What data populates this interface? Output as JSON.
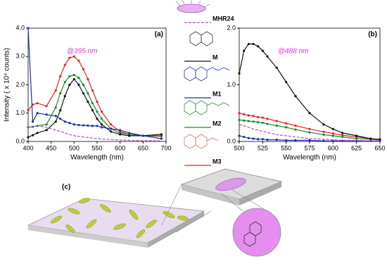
{
  "chart_data": [
    {
      "type": "line",
      "label": "(a)",
      "annotation": "@395 nm",
      "xlabel": "Wavelength (nm)",
      "ylabel": "Intensity ( x 10⁴ counts)",
      "x": [
        400,
        410,
        420,
        440,
        460,
        470,
        480,
        490,
        500,
        510,
        520,
        530,
        540,
        550,
        560,
        580,
        600,
        620,
        650,
        690
      ],
      "xlim": [
        400,
        700
      ],
      "xticks": [
        400,
        450,
        500,
        550,
        600,
        650,
        700
      ],
      "ylim": [
        0,
        4
      ],
      "yticks": [
        {
          "value": 0,
          "label": "0.0"
        },
        {
          "value": 1,
          "label": "1.0"
        },
        {
          "value": 2,
          "label": "2.0"
        },
        {
          "value": 3,
          "label": "3.0"
        },
        {
          "value": 4,
          "label": "4.0"
        }
      ],
      "series": [
        {
          "name": "M3",
          "color": "#e8221e",
          "values": [
            1.1,
            1.3,
            1.35,
            1.25,
            1.8,
            2.3,
            2.7,
            2.95,
            3.0,
            2.85,
            2.55,
            2.2,
            1.8,
            1.4,
            1.05,
            0.6,
            0.35,
            0.25,
            0.2,
            0.18
          ]
        },
        {
          "name": "M2",
          "color": "#1a8a2a",
          "values": [
            0.5,
            0.52,
            0.55,
            0.6,
            1.2,
            1.7,
            2.1,
            2.3,
            2.35,
            2.25,
            2.0,
            1.7,
            1.35,
            1.05,
            0.8,
            0.45,
            0.3,
            0.25,
            0.2,
            0.2
          ]
        },
        {
          "name": "M",
          "color": "#111111",
          "values": [
            0.15,
            0.22,
            0.3,
            0.4,
            0.7,
            1.1,
            1.6,
            2.0,
            2.2,
            2.0,
            1.7,
            1.4,
            1.1,
            0.8,
            0.6,
            0.35,
            0.25,
            0.2,
            0.2,
            0.25
          ]
        },
        {
          "name": "M1",
          "color": "#1f2fa8",
          "values": [
            4.0,
            0.7,
            1.0,
            0.95,
            0.9,
            0.8,
            0.7,
            0.65,
            0.6,
            0.58,
            0.57,
            0.56,
            0.55,
            0.55,
            0.5,
            0.45,
            0.4,
            0.3,
            0.2,
            0.1
          ]
        },
        {
          "name": "MHR24",
          "color": "#b04cc8",
          "dash": true,
          "values": [
            0.5,
            0.52,
            0.55,
            0.5,
            0.4,
            0.35,
            0.3,
            0.25,
            0.2,
            0.18,
            0.16,
            0.14,
            0.12,
            0.1,
            0.09,
            0.07,
            0.05,
            0.04,
            0.03,
            0.02
          ]
        }
      ]
    },
    {
      "type": "line",
      "label": "(b)",
      "annotation": "@488 nm",
      "xlabel": "Wavelength (nm)",
      "x": [
        500,
        505,
        510,
        515,
        520,
        525,
        530,
        540,
        550,
        560,
        575,
        590,
        600,
        610,
        625,
        640,
        650
      ],
      "xlim": [
        500,
        650
      ],
      "xticks": [
        500,
        525,
        550,
        575,
        600,
        625,
        650
      ],
      "ylim": [
        0,
        2
      ],
      "yticks": [
        {
          "value": 0,
          "label": "0.0"
        },
        {
          "value": 1,
          "label": "1.0"
        },
        {
          "value": 2,
          "label": "2.0"
        }
      ],
      "series": [
        {
          "name": "M3",
          "color": "#e8221e",
          "values": [
            0.5,
            0.48,
            0.46,
            0.45,
            0.43,
            0.42,
            0.4,
            0.36,
            0.32,
            0.28,
            0.22,
            0.17,
            0.14,
            0.11,
            0.08,
            0.05,
            0.04
          ]
        },
        {
          "name": "M2",
          "color": "#1a8a2a",
          "values": [
            0.38,
            0.37,
            0.36,
            0.35,
            0.34,
            0.33,
            0.31,
            0.28,
            0.25,
            0.21,
            0.16,
            0.12,
            0.1,
            0.08,
            0.05,
            0.04,
            0.03
          ]
        },
        {
          "name": "M",
          "color": "#111111",
          "values": [
            1.2,
            1.6,
            1.72,
            1.72,
            1.68,
            1.6,
            1.5,
            1.3,
            1.05,
            0.8,
            0.5,
            0.3,
            0.22,
            0.15,
            0.1,
            0.05,
            0.03
          ]
        },
        {
          "name": "M1",
          "color": "#1f2fa8",
          "values": [
            0.1,
            0.08,
            0.06,
            0.05,
            0.04,
            0.04,
            0.03,
            0.03,
            0.02,
            0.02,
            0.02,
            0.01,
            0.01,
            0.01,
            0.01,
            0.01,
            0.01
          ]
        },
        {
          "name": "MHR24",
          "color": "#b04cc8",
          "dash": true,
          "values": [
            0.3,
            0.28,
            0.25,
            0.22,
            0.2,
            0.18,
            0.16,
            0.12,
            0.1,
            0.08,
            0.05,
            0.04,
            0.03,
            0.02,
            0.02,
            0.01,
            0.01
          ]
        }
      ]
    }
  ],
  "panel_c": {
    "label": "(c)"
  }
}
